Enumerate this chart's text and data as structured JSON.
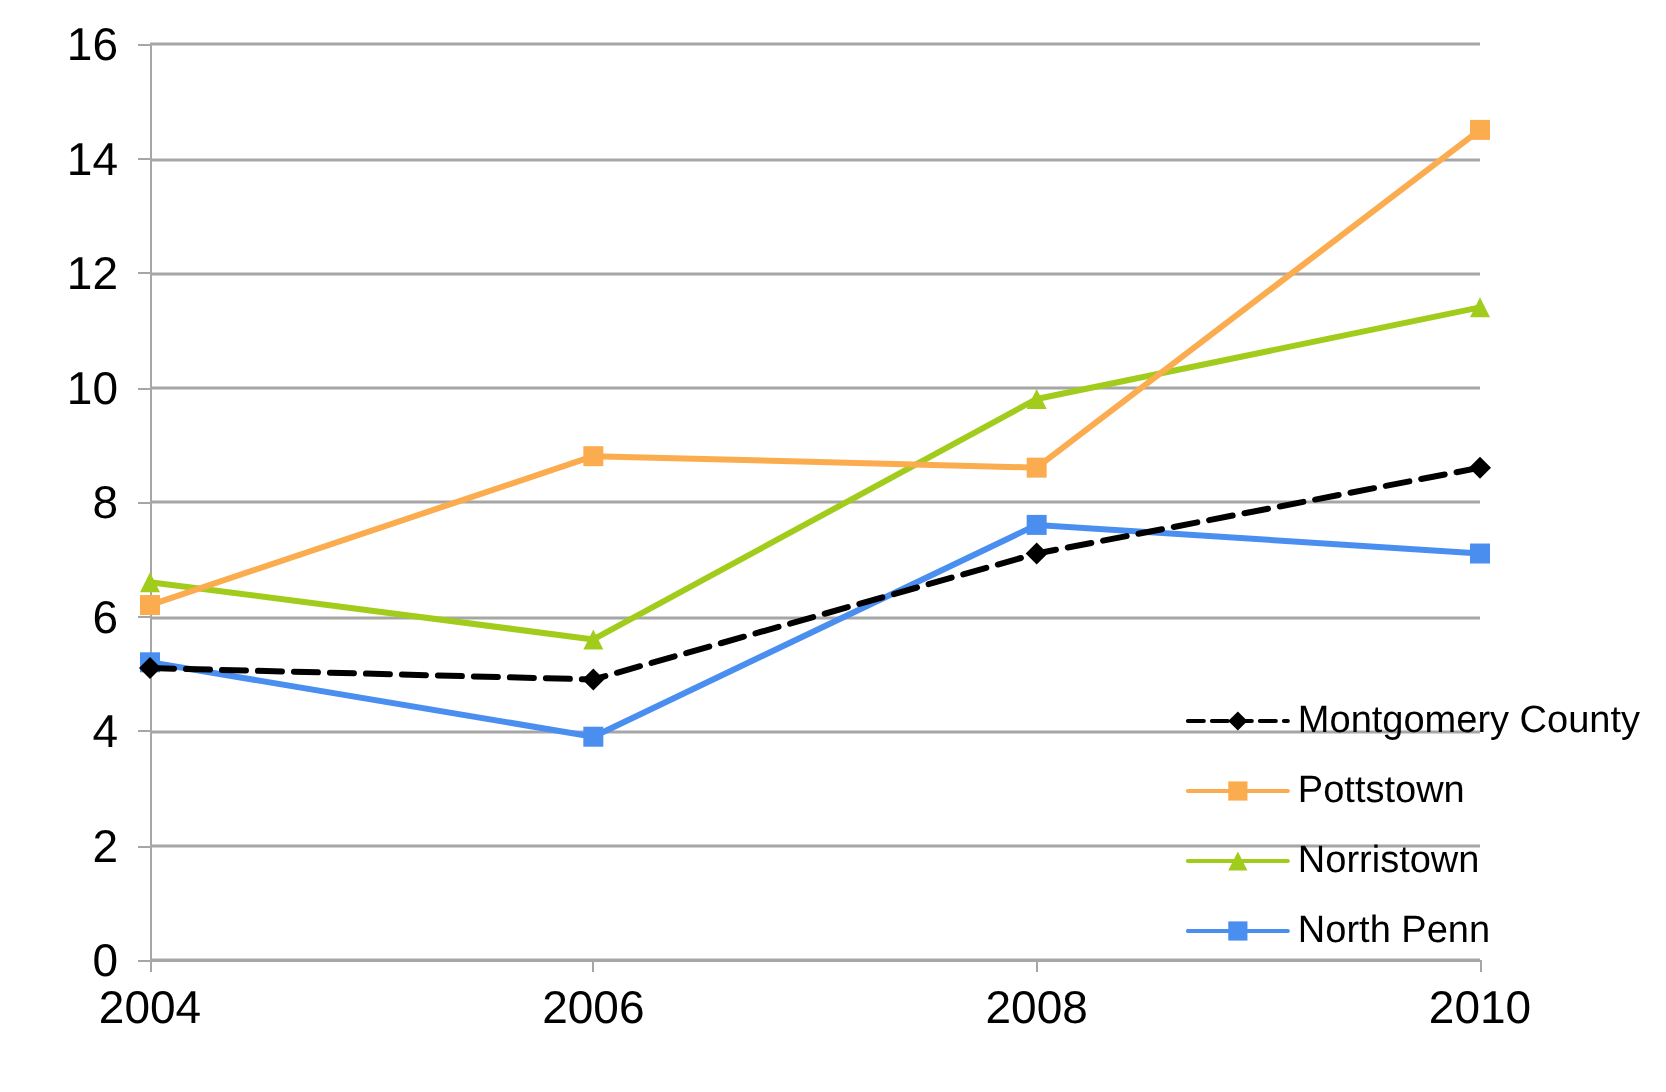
{
  "chart_data": {
    "type": "line",
    "x": [
      2004,
      2006,
      2008,
      2010
    ],
    "xlim": [
      2004,
      2010
    ],
    "xticks": [
      2004,
      2006,
      2008,
      2010
    ],
    "ylim": [
      0,
      16
    ],
    "yticks": [
      0,
      2,
      4,
      6,
      8,
      10,
      12,
      14,
      16
    ],
    "grid": "y",
    "legend": "bottom right",
    "series": [
      {
        "name": "Montgomery County",
        "color": "#000000",
        "marker": "diamond",
        "line_style": "dashed",
        "values": [
          5.1,
          4.9,
          7.1,
          8.6
        ]
      },
      {
        "name": "Pottstown",
        "color": "#fbac4f",
        "marker": "square",
        "line_style": "solid",
        "values": [
          6.2,
          8.8,
          8.6,
          14.5
        ]
      },
      {
        "name": "Norristown",
        "color": "#a2cc1c",
        "marker": "triangle",
        "line_style": "solid",
        "values": [
          6.6,
          5.6,
          9.8,
          11.4
        ]
      },
      {
        "name": "North Penn",
        "color": "#4a8ff0",
        "marker": "square",
        "line_style": "solid",
        "values": [
          5.2,
          3.9,
          7.6,
          7.1
        ]
      }
    ]
  }
}
